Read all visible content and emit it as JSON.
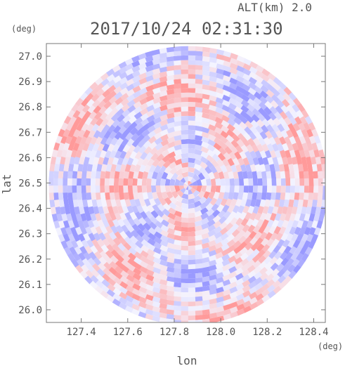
{
  "header": {
    "altitude_label": "ALT(km)  2.0",
    "timestamp": "2017/10/24 02:31:30"
  },
  "chart_data": {
    "type": "heatmap",
    "xlabel": "lon",
    "ylabel": "lat",
    "x_unit": "(deg)",
    "y_unit": "(deg)",
    "xlim": [
      127.25,
      128.45
    ],
    "ylim": [
      25.95,
      27.05
    ],
    "x_ticks": [
      "127.4",
      "127.6",
      "127.8",
      "128.0",
      "128.2",
      "128.4"
    ],
    "x_tick_values": [
      127.4,
      127.6,
      127.8,
      128.0,
      128.2,
      128.4
    ],
    "y_ticks": [
      "26.0",
      "26.1",
      "26.2",
      "26.3",
      "26.4",
      "26.5",
      "26.6",
      "26.7",
      "26.8",
      "26.9",
      "27.0"
    ],
    "y_tick_values": [
      26.0,
      26.1,
      26.2,
      26.3,
      26.4,
      26.5,
      26.6,
      26.7,
      26.8,
      26.9,
      27.0
    ],
    "radar_center": {
      "lon": 127.86,
      "lat": 26.49
    },
    "radar_radius_lat_deg": 0.55,
    "colors": {
      "positive": "#ff9a9a",
      "negative": "#9a9aff",
      "neutral": "#f4f4ff",
      "axis": "#777777",
      "text": "#555555"
    }
  }
}
